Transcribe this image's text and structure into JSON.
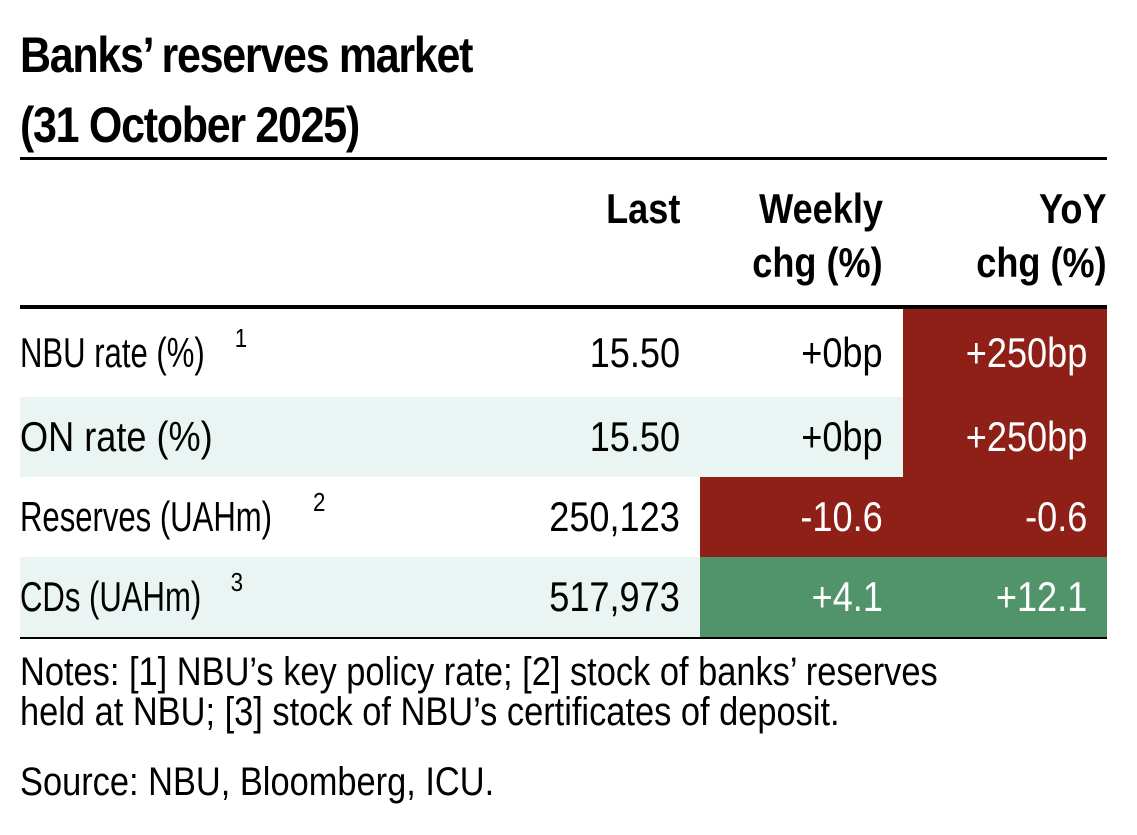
{
  "title": {
    "line1": "Banks’ reserves market",
    "line2": "(31 October 2025)"
  },
  "columns": {
    "last": "Last",
    "weekly_line1": "Weekly",
    "weekly_line2": "chg (%)",
    "yoy_line1": "YoY",
    "yoy_line2": "chg (%)"
  },
  "rows": [
    {
      "label": "NBU rate (%)",
      "sup": "1",
      "last": "15.50",
      "weekly": "+0bp",
      "yoy": "+250bp"
    },
    {
      "label": "ON rate (%)",
      "sup": "",
      "last": "15.50",
      "weekly": "+0bp",
      "yoy": "+250bp"
    },
    {
      "label": "Reserves (UAHm)",
      "sup": "2",
      "last": "250,123",
      "weekly": "-10.6",
      "yoy": "-0.6"
    },
    {
      "label": "CDs (UAHm)",
      "sup": "3",
      "last": "517,973",
      "weekly": "+4.1",
      "yoy": "+12.1"
    }
  ],
  "notes": {
    "line1": "Notes: [1] NBU’s key policy rate; [2] stock of banks’ reserves",
    "line2": "held at NBU; [3] stock of NBU’s certificates of deposit."
  },
  "source": "Source: NBU, Bloomberg, ICU.",
  "colors": {
    "negative": "#8e2018",
    "positive": "#52946a",
    "band": "#eaf4f2"
  }
}
